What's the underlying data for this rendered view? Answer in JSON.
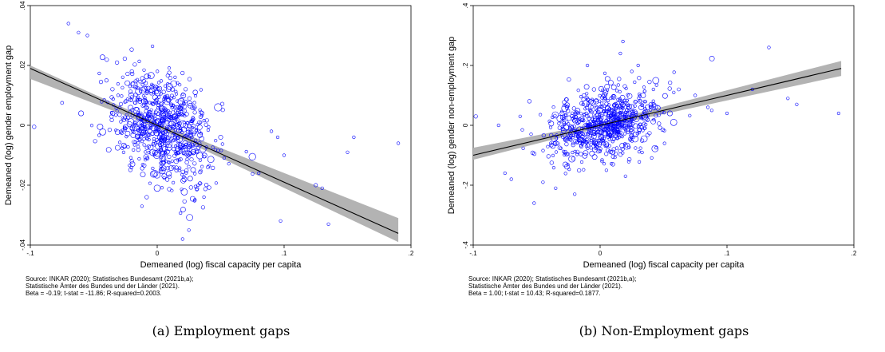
{
  "panels": [
    {
      "caption": "(a) Employment gaps",
      "notes": [
        "Source: INKAR (2020); Statistisches Bundesamt (2021b,a);",
        "Statistische Ämter des Bundes und der Länder (2021).",
        "Beta = -0.19; t-stat = -11.86; R-squared=0.2003."
      ]
    },
    {
      "caption": "(b) Non-Employment gaps",
      "notes": [
        "Source: INKAR (2020); Statistisches Bundesamt (2021b,a);",
        "Statistische Ämter des Bundes und der Länder (2021).",
        "Beta =  1.00; t-stat = 10.43; R-squared=0.1877."
      ]
    }
  ],
  "colors": {
    "markers": "#0000ff",
    "fit_line": "#000000",
    "ci_band": "#b3b3b3"
  },
  "chart_data": [
    {
      "type": "scatter",
      "xlabel": "Demeaned (log) fiscal capacity per capita",
      "ylabel": "Demeaned (log) gender employment gap",
      "xlim": [
        -0.1,
        0.2
      ],
      "ylim": [
        -0.04,
        0.04
      ],
      "xticks": [
        -0.1,
        0,
        0.1,
        0.2
      ],
      "xtick_labels": [
        "-.1",
        "0",
        ".1",
        ".2"
      ],
      "yticks": [
        -0.04,
        -0.02,
        0,
        0.02,
        0.04
      ],
      "ytick_labels": [
        "-.04",
        "-.02",
        "0",
        ".02",
        ".04"
      ],
      "grid": false,
      "marker": "hollow-circle",
      "fit": {
        "beta": -0.19,
        "intercept": 0.0,
        "x_range": [
          -0.1,
          0.19
        ]
      },
      "ci_band": [
        [
          -0.1,
          0.0155,
          0.02
        ],
        [
          0.0,
          -0.0008,
          0.0008
        ],
        [
          0.19,
          -0.039,
          -0.031
        ]
      ],
      "points": [
        [
          -0.097,
          -0.0005,
          1.3
        ],
        [
          -0.075,
          0.0075,
          1.1
        ],
        [
          -0.07,
          0.034,
          1.0
        ],
        [
          -0.062,
          0.031,
          1.0
        ],
        [
          -0.055,
          0.03,
          1.0
        ],
        [
          -0.06,
          0.004,
          1.8
        ],
        [
          -0.035,
          0.004,
          1.5
        ],
        [
          -0.02,
          0.018,
          1.3
        ],
        [
          -0.01,
          0.008,
          2.0
        ],
        [
          0.002,
          -0.004,
          1.6
        ],
        [
          0.012,
          0.012,
          1.4
        ],
        [
          0.022,
          -0.006,
          1.8
        ],
        [
          -0.02,
          -0.012,
          1.3
        ],
        [
          0.0,
          -0.021,
          2.2
        ],
        [
          0.015,
          -0.012,
          1.6
        ],
        [
          0.05,
          -0.004,
          1.5
        ],
        [
          0.075,
          -0.0105,
          2.4
        ],
        [
          0.08,
          -0.016,
          1.0
        ],
        [
          0.09,
          -0.002,
          1.0
        ],
        [
          0.095,
          -0.004,
          1.0
        ],
        [
          0.1,
          -0.01,
          1.0
        ],
        [
          0.125,
          -0.02,
          1.2
        ],
        [
          0.13,
          -0.021,
          1.0
        ],
        [
          0.135,
          -0.033,
          1.0
        ],
        [
          0.15,
          -0.009,
          1.0
        ],
        [
          0.155,
          -0.004,
          1.0
        ],
        [
          0.19,
          -0.006,
          1.0
        ],
        [
          0.02,
          -0.038,
          1.0
        ],
        [
          0.025,
          -0.035,
          1.0
        ],
        [
          -0.012,
          -0.027,
          1.0
        ],
        [
          0.03,
          0.011,
          1.6
        ],
        [
          0.04,
          -0.014,
          1.2
        ],
        [
          -0.045,
          -0.0005,
          2.0
        ],
        [
          0.048,
          0.006,
          2.6
        ],
        [
          -0.04,
          0.015,
          1.2
        ]
      ],
      "cloud": {
        "count": 720,
        "center": [
          0.005,
          0.0
        ],
        "sd": [
          0.02,
          0.0085
        ],
        "seed": 11
      }
    },
    {
      "type": "scatter",
      "xlabel": "Demeaned (log) fiscal capacity per capita",
      "ylabel": "Demeaned (log) gender non-employment gap",
      "xlim": [
        -0.1,
        0.2
      ],
      "ylim": [
        -0.4,
        0.4
      ],
      "xticks": [
        -0.1,
        0,
        0.1,
        0.2
      ],
      "xtick_labels": [
        "-.1",
        "0",
        ".1",
        ".2"
      ],
      "yticks": [
        -0.4,
        -0.2,
        0,
        0.2,
        0.4
      ],
      "ytick_labels": [
        "-.4",
        "-.2",
        "0",
        ".2",
        ".4"
      ],
      "grid": false,
      "marker": "hollow-circle",
      "fit": {
        "beta": 1.0,
        "intercept": 0.0,
        "x_range": [
          -0.1,
          0.19
        ]
      },
      "ci_band": [
        [
          -0.1,
          -0.115,
          -0.075
        ],
        [
          0.0,
          -0.008,
          0.008
        ],
        [
          0.19,
          0.165,
          0.215
        ]
      ],
      "points": [
        [
          -0.098,
          0.03,
          1.3
        ],
        [
          -0.075,
          -0.16,
          1.0
        ],
        [
          -0.07,
          -0.18,
          1.0
        ],
        [
          -0.052,
          -0.26,
          1.0
        ],
        [
          -0.045,
          -0.19,
          1.0
        ],
        [
          -0.035,
          -0.21,
          1.0
        ],
        [
          -0.02,
          -0.23,
          1.0
        ],
        [
          0.01,
          -0.09,
          1.6
        ],
        [
          0.04,
          0.07,
          1.4
        ],
        [
          0.055,
          0.04,
          1.8
        ],
        [
          0.062,
          0.12,
          1.1
        ],
        [
          0.075,
          0.1,
          1.0
        ],
        [
          0.085,
          0.06,
          1.0
        ],
        [
          0.1,
          0.04,
          1.0
        ],
        [
          0.12,
          0.12,
          1.0
        ],
        [
          0.133,
          0.26,
          1.0
        ],
        [
          0.148,
          0.09,
          1.0
        ],
        [
          0.155,
          0.07,
          1.0
        ],
        [
          0.188,
          0.04,
          1.0
        ],
        [
          0.018,
          0.28,
          1.0
        ],
        [
          0.016,
          0.24,
          1.0
        ],
        [
          0.025,
          0.18,
          1.0
        ],
        [
          0.03,
          0.2,
          1.0
        ],
        [
          0.042,
          0.12,
          1.0
        ],
        [
          -0.01,
          0.2,
          1.0
        ],
        [
          0.0,
          0.05,
          2.0
        ],
        [
          -0.03,
          0.04,
          1.5
        ],
        [
          0.025,
          -0.02,
          1.6
        ],
        [
          0.058,
          0.01,
          2.2
        ],
        [
          0.088,
          0.05,
          1.0
        ],
        [
          -0.08,
          0.0,
          1.0
        ],
        [
          -0.063,
          0.03,
          1.0
        ],
        [
          0.005,
          -0.15,
          1.0
        ],
        [
          0.02,
          -0.17,
          1.0
        ]
      ],
      "cloud": {
        "count": 720,
        "center": [
          0.003,
          0.003
        ],
        "sd": [
          0.021,
          0.06
        ],
        "seed": 29
      }
    }
  ]
}
